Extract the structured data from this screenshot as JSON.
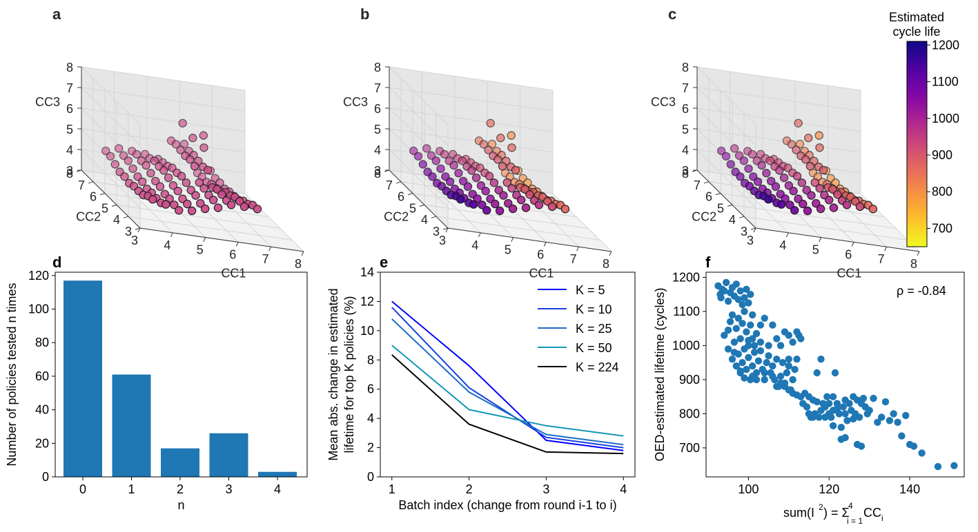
{
  "panel_letters": {
    "a": "a",
    "b": "b",
    "c": "c",
    "d": "d",
    "e": "e",
    "f": "f"
  },
  "colorbar": {
    "title_line1": "Estimated",
    "title_line2": "cycle life",
    "ticks": [
      "1200",
      "1100",
      "1000",
      "900",
      "800",
      "700"
    ],
    "tick_values": [
      1200,
      1100,
      1000,
      900,
      800,
      700
    ],
    "range": [
      650,
      1210
    ],
    "colormap": "plasma_r"
  },
  "chart_data": [
    {
      "panel": "a",
      "type": "scatter3d",
      "xlabel": "CC1",
      "ylabel": "CC2",
      "zlabel": "CC3",
      "x_ticks": [
        "3",
        "4",
        "5",
        "6",
        "7",
        "8"
      ],
      "y_ticks": [
        "3",
        "4",
        "5",
        "6",
        "7",
        "8"
      ],
      "z_ticks": [
        "3",
        "4",
        "5",
        "6",
        "7",
        "8"
      ],
      "color_mode": "uniform",
      "marker_color": "#cc4c8a"
    },
    {
      "panel": "b",
      "type": "scatter3d",
      "xlabel": "CC1",
      "ylabel": "CC2",
      "zlabel": "CC3",
      "x_ticks": [
        "3",
        "4",
        "5",
        "6",
        "7",
        "8"
      ],
      "y_ticks": [
        "3",
        "4",
        "5",
        "6",
        "7",
        "8"
      ],
      "z_ticks": [
        "3",
        "4",
        "5",
        "6",
        "7",
        "8"
      ],
      "color_mode": "estimated_cycle_life"
    },
    {
      "panel": "c",
      "type": "scatter3d",
      "xlabel": "CC1",
      "ylabel": "CC2",
      "zlabel": "CC3",
      "x_ticks": [
        "3",
        "4",
        "5",
        "6",
        "7",
        "8"
      ],
      "y_ticks": [
        "3",
        "4",
        "5",
        "6",
        "7",
        "8"
      ],
      "z_ticks": [
        "3",
        "4",
        "5",
        "6",
        "7",
        "8"
      ],
      "color_mode": "estimated_cycle_life"
    },
    {
      "panel": "d",
      "type": "bar",
      "xlabel": "n",
      "ylabel": "Number of policies tested n times",
      "categories": [
        "0",
        "1",
        "2",
        "3",
        "4"
      ],
      "values": [
        117,
        61,
        17,
        26,
        3
      ],
      "ylim": [
        0,
        122
      ],
      "y_ticks": [
        0,
        20,
        40,
        60,
        80,
        100,
        120
      ],
      "bar_color": "#1f77b4"
    },
    {
      "panel": "e",
      "type": "line",
      "xlabel": "Batch index (change from round i-1 to i)",
      "ylabel_line1": "Mean abs. change in estimated",
      "ylabel_line2": "lifetime for top K policies (%)",
      "x": [
        1,
        2,
        3,
        4
      ],
      "x_ticks": [
        1,
        2,
        3,
        4
      ],
      "xlim": [
        0.85,
        4.15
      ],
      "ylim": [
        0,
        14
      ],
      "y_ticks": [
        0,
        2,
        4,
        6,
        8,
        10,
        12,
        14
      ],
      "legend_position": "top-right",
      "series": [
        {
          "name": "K = 5",
          "values": [
            12.0,
            7.6,
            2.5,
            1.8
          ],
          "color": "#0000ff"
        },
        {
          "name": "K = 10",
          "values": [
            11.6,
            6.1,
            2.7,
            2.0
          ],
          "color": "#1540e0"
        },
        {
          "name": "K = 25",
          "values": [
            10.8,
            5.8,
            2.9,
            2.2
          ],
          "color": "#1a6dc4"
        },
        {
          "name": "K = 50",
          "values": [
            9.0,
            4.6,
            3.5,
            2.8
          ],
          "color": "#1397b5"
        },
        {
          "name": "K = 224",
          "values": [
            8.35,
            3.6,
            1.7,
            1.6
          ],
          "color": "#000000"
        }
      ]
    },
    {
      "panel": "f",
      "type": "scatter",
      "xlabel_prefix": "sum(I",
      "xlabel_sup": "2",
      "xlabel_mid": ") = Σ",
      "xlabel_sum_sup": "4",
      "xlabel_sum_sub": "i = 1",
      "xlabel_cc": "CC",
      "xlabel_cc_sub": "i",
      "ylabel": "OED-estimated lifetime (cycles)",
      "annotation": "ρ = -0.84",
      "xlim": [
        89.5,
        153.5
      ],
      "ylim": [
        615,
        1215
      ],
      "x_ticks": [
        100,
        120,
        140
      ],
      "y_ticks": [
        700,
        800,
        900,
        1000,
        1100,
        1200
      ],
      "marker_color": "#1f77b4",
      "points": [
        [
          92.5,
          1175
        ],
        [
          93,
          1150
        ],
        [
          93.2,
          1140
        ],
        [
          93.5,
          1165
        ],
        [
          94,
          1160
        ],
        [
          94.5,
          1185
        ],
        [
          95,
          1130
        ],
        [
          95.5,
          1155
        ],
        [
          96,
          1170
        ],
        [
          96.5,
          1145
        ],
        [
          97,
          1180
        ],
        [
          97.5,
          1135
        ],
        [
          98,
          1160
        ],
        [
          98.5,
          1120
        ],
        [
          99,
          1140
        ],
        [
          99.5,
          1165
        ],
        [
          100,
          1125
        ],
        [
          100.5,
          1150
        ],
        [
          94,
          1030
        ],
        [
          95,
          1045
        ],
        [
          95.5,
          1070
        ],
        [
          96,
          1090
        ],
        [
          96.5,
          1010
        ],
        [
          97,
          1050
        ],
        [
          97.5,
          1080
        ],
        [
          98,
          1020
        ],
        [
          98.5,
          1065
        ],
        [
          99,
          1100
        ],
        [
          99.5,
          1040
        ],
        [
          100,
          1015
        ],
        [
          100.5,
          1060
        ],
        [
          101,
          1090
        ],
        [
          101.5,
          1000
        ],
        [
          102,
          1035
        ],
        [
          95,
          990
        ],
        [
          96,
          960
        ],
        [
          96.5,
          980
        ],
        [
          97,
          940
        ],
        [
          97.5,
          975
        ],
        [
          98,
          920
        ],
        [
          98.5,
          950
        ],
        [
          99,
          990
        ],
        [
          99.5,
          930
        ],
        [
          100,
          965
        ],
        [
          100.5,
          900
        ],
        [
          101,
          940
        ],
        [
          101.5,
          980
        ],
        [
          102,
          920
        ],
        [
          102.5,
          955
        ],
        [
          103,
          985
        ],
        [
          103.5,
          930
        ],
        [
          104,
          900
        ],
        [
          104.5,
          950
        ],
        [
          105,
          970
        ],
        [
          105.5,
          920
        ],
        [
          106,
          940
        ],
        [
          106.5,
          900
        ],
        [
          107,
          960
        ],
        [
          107.5,
          880
        ],
        [
          108,
          910
        ],
        [
          108.5,
          950
        ],
        [
          109,
          890
        ],
        [
          109.5,
          920
        ],
        [
          110,
          940
        ],
        [
          110.5,
          870
        ],
        [
          111,
          900
        ],
        [
          111.5,
          930
        ],
        [
          100,
          1000
        ],
        [
          101,
          1020
        ],
        [
          103,
          1010
        ],
        [
          105,
          1000
        ],
        [
          107,
          1020
        ],
        [
          109,
          1040
        ],
        [
          110,
          1030
        ],
        [
          111,
          1010
        ],
        [
          112,
          1040
        ],
        [
          112.5,
          1030
        ],
        [
          113,
          1020
        ],
        [
          104,
          1080
        ],
        [
          106,
          1060
        ],
        [
          103,
          1060
        ],
        [
          108,
          1000
        ],
        [
          110,
          960
        ],
        [
          112,
          960
        ],
        [
          110,
          870
        ],
        [
          111,
          860
        ],
        [
          112,
          855
        ],
        [
          113,
          850
        ],
        [
          113.5,
          830
        ],
        [
          114,
          860
        ],
        [
          114.5,
          820
        ],
        [
          115,
          850
        ],
        [
          115.5,
          790
        ],
        [
          116,
          840
        ],
        [
          116.5,
          800
        ],
        [
          117,
          920
        ],
        [
          117.5,
          790
        ],
        [
          118,
          960
        ],
        [
          118.5,
          830
        ],
        [
          119,
          820
        ],
        [
          119.5,
          850
        ],
        [
          120,
          800
        ],
        [
          120.5,
          790
        ],
        [
          121,
          810
        ],
        [
          121.5,
          920
        ],
        [
          122,
          830
        ],
        [
          122.5,
          800
        ],
        [
          123,
          760
        ],
        [
          123.5,
          820
        ],
        [
          124,
          840
        ],
        [
          124.5,
          780
        ],
        [
          125,
          830
        ],
        [
          125.5,
          810
        ],
        [
          126,
          850
        ],
        [
          126.5,
          800
        ],
        [
          127,
          840
        ],
        [
          127.5,
          790
        ],
        [
          128,
          830
        ],
        [
          128.5,
          845
        ],
        [
          129,
          820
        ],
        [
          129.5,
          800
        ],
        [
          130,
          810
        ],
        [
          131,
          845
        ],
        [
          132,
          775
        ],
        [
          133,
          790
        ],
        [
          134,
          835
        ],
        [
          135,
          780
        ],
        [
          136,
          800
        ],
        [
          137,
          775
        ],
        [
          138,
          735
        ],
        [
          139,
          795
        ],
        [
          140,
          710
        ],
        [
          141,
          705
        ],
        [
          143,
          685
        ],
        [
          147,
          645
        ],
        [
          151,
          648
        ],
        [
          123,
          725
        ],
        [
          124,
          730
        ],
        [
          127,
          710
        ],
        [
          128,
          705
        ],
        [
          121,
          765
        ],
        [
          119,
          790
        ],
        [
          116,
          790
        ],
        [
          115,
          800
        ],
        [
          118,
          810
        ],
        [
          120,
          830
        ],
        [
          121,
          850
        ],
        [
          122,
          815
        ],
        [
          117,
          835
        ],
        [
          124,
          800
        ],
        [
          126,
          785
        ],
        [
          107,
          880
        ],
        [
          108,
          890
        ],
        [
          109,
          880
        ],
        [
          104,
          920
        ],
        [
          106,
          910
        ],
        [
          102,
          900
        ],
        [
          101,
          910
        ],
        [
          99,
          905
        ],
        [
          98,
          925
        ]
      ]
    }
  ]
}
